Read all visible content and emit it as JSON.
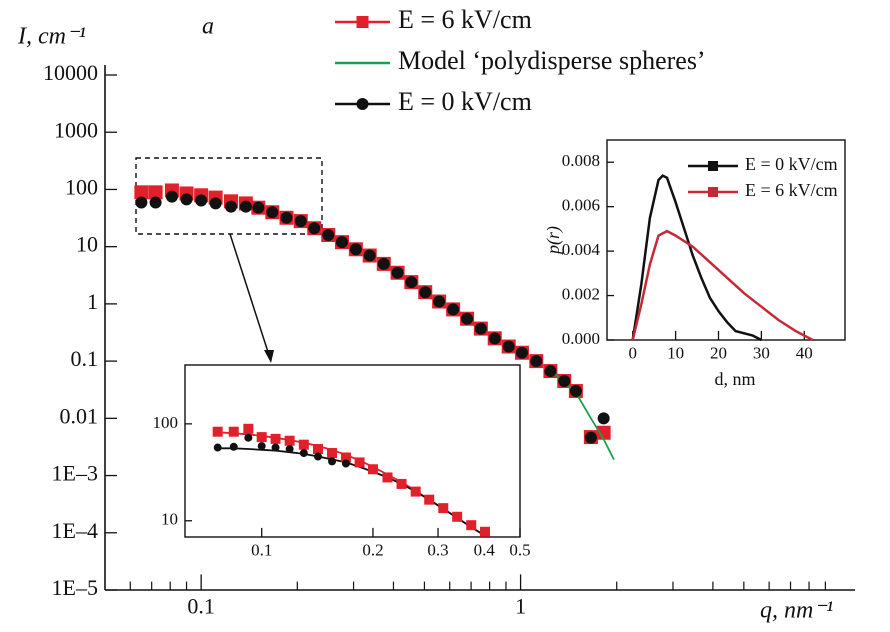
{
  "chart_data": [
    {
      "type": "scatter",
      "ylabel": "I, cm⁻¹",
      "xlabel": "q, nm⁻¹",
      "annotation": "a",
      "xscale": "log",
      "yscale": "log",
      "xlim": [
        0.05,
        10
      ],
      "ylim": [
        1e-05,
        10000
      ],
      "xticks": [
        0.1,
        1
      ],
      "xminorticks": [
        0.06,
        0.07,
        0.08,
        0.09,
        0.2,
        0.3,
        0.4,
        0.5,
        0.6,
        0.7,
        0.8,
        0.9,
        2,
        3,
        4,
        5,
        6,
        7,
        8,
        9
      ],
      "yticks": [
        10000,
        1000,
        100,
        10,
        1,
        0.1,
        0.01,
        {
          "value": 0.001,
          "label": "1E–3"
        },
        {
          "value": 0.0001,
          "label": "1E–4"
        },
        {
          "value": 1e-05,
          "label": "1E–5"
        }
      ],
      "series": [
        {
          "name": "E = 6 kV/cm",
          "color": "#e0202a",
          "marker": "square",
          "x": [
            0.065,
            0.072,
            0.081,
            0.09,
            0.1,
            0.111,
            0.124,
            0.138,
            0.151,
            0.167,
            0.185,
            0.205,
            0.226,
            0.25,
            0.276,
            0.305,
            0.337,
            0.373,
            0.412,
            0.455,
            0.503,
            0.556,
            0.615,
            0.68,
            0.751,
            0.83,
            0.918,
            1.01,
            1.12,
            1.24,
            1.37,
            1.49,
            1.66,
            1.82
          ],
          "values": [
            89,
            89,
            96,
            85,
            79,
            72,
            62,
            57,
            48,
            40,
            32,
            28,
            21,
            16,
            12,
            9,
            7,
            5,
            3.5,
            2.4,
            1.6,
            1.1,
            0.8,
            0.55,
            0.37,
            0.25,
            0.18,
            0.14,
            0.1,
            0.067,
            0.045,
            0.03,
            0.0047,
            0.0056
          ]
        },
        {
          "name": "Model ‘polydisperse spheres’",
          "color": "#1aa04a",
          "line": true,
          "x": [
            1.24,
            1.49,
            1.66,
            1.82,
            1.96
          ],
          "values": [
            0.07,
            0.028,
            0.01,
            0.0043,
            0.0019
          ]
        },
        {
          "name": "E = 0 kV/cm",
          "color": "#111111",
          "marker": "circle",
          "x": [
            0.065,
            0.072,
            0.081,
            0.09,
            0.1,
            0.111,
            0.124,
            0.138,
            0.151,
            0.167,
            0.185,
            0.205,
            0.226,
            0.25,
            0.276,
            0.305,
            0.337,
            0.373,
            0.412,
            0.455,
            0.503,
            0.556,
            0.615,
            0.68,
            0.751,
            0.83,
            0.918,
            1.01,
            1.12,
            1.24,
            1.37,
            1.49,
            1.66,
            1.82
          ],
          "values": [
            59,
            59,
            75,
            67,
            64,
            57,
            50,
            50,
            48,
            40,
            32,
            28,
            21,
            16,
            12,
            9,
            7,
            5,
            3.5,
            2.4,
            1.6,
            1.1,
            0.8,
            0.55,
            0.37,
            0.25,
            0.18,
            0.14,
            0.1,
            0.067,
            0.045,
            0.03,
            0.0046,
            0.01
          ]
        }
      ]
    },
    {
      "type": "scatter",
      "xscale": "log",
      "yscale": "log",
      "xlim": [
        0.062,
        0.5
      ],
      "ylim": [
        6.8,
        405
      ],
      "xticks": [
        0.1,
        0.2,
        0.3,
        0.4,
        0.5
      ],
      "yticks": [
        10,
        100
      ],
      "series": [
        {
          "color": "#e0202a",
          "line": true,
          "x": [
            0.076,
            0.084,
            0.092,
            0.1,
            0.109,
            0.119,
            0.13,
            0.142,
            0.155,
            0.169,
            0.184,
            0.2,
            0.219,
            0.239,
            0.261,
            0.284,
            0.31,
            0.338,
            0.369,
            0.402
          ],
          "values": [
            82,
            80,
            78,
            75,
            72,
            68,
            64,
            59,
            54,
            48,
            42,
            36,
            30,
            25,
            20.5,
            16.5,
            13.3,
            10.7,
            8.6,
            7.0
          ]
        },
        {
          "color": "#111111",
          "line": true,
          "x": [
            0.076,
            0.084,
            0.092,
            0.1,
            0.109,
            0.119,
            0.13,
            0.142,
            0.155,
            0.169,
            0.184,
            0.2,
            0.219,
            0.239,
            0.261,
            0.284,
            0.31,
            0.338,
            0.369,
            0.402
          ],
          "values": [
            56,
            56,
            55,
            54,
            53,
            51,
            49,
            46,
            43,
            40,
            36,
            32,
            28,
            24,
            20,
            16.5,
            13.3,
            10.7,
            8.6,
            7.0
          ]
        },
        {
          "color": "#e0202a",
          "marker": "square",
          "x": [
            0.076,
            0.084,
            0.092,
            0.1,
            0.109,
            0.119,
            0.13,
            0.142,
            0.155,
            0.169,
            0.184,
            0.2,
            0.219,
            0.239,
            0.261,
            0.284,
            0.31,
            0.338,
            0.369,
            0.402
          ],
          "values": [
            83,
            83,
            89,
            73,
            70,
            67,
            61,
            55,
            50,
            45,
            40,
            34,
            28,
            24,
            20,
            16.5,
            13.5,
            11,
            9,
            7.7
          ]
        },
        {
          "color": "#111111",
          "marker": "circle",
          "x": [
            0.076,
            0.084,
            0.092,
            0.1,
            0.109,
            0.119,
            0.13,
            0.142,
            0.155,
            0.169
          ],
          "values": [
            57,
            58,
            72,
            59,
            57,
            55,
            50,
            46,
            41,
            39
          ]
        }
      ]
    },
    {
      "type": "line",
      "ylabel": "p(r)",
      "xlabel": "d, nm",
      "xlim": [
        -6,
        49.5
      ],
      "ylim": [
        0,
        0.009
      ],
      "xticks": [
        0,
        10,
        20,
        30,
        40
      ],
      "yticks": [
        {
          "value": 0,
          "label": "0.000"
        },
        0.002,
        0.004,
        0.006,
        0.008
      ],
      "series": [
        {
          "name": "E = 0 kV/cm",
          "color": "#111111",
          "x": [
            0,
            2,
            4,
            6,
            7,
            8,
            10,
            12,
            14,
            16,
            18,
            20,
            22,
            24,
            26,
            28,
            30
          ],
          "values": [
            0,
            0.0025,
            0.0055,
            0.0072,
            0.0074,
            0.0073,
            0.0062,
            0.005,
            0.0038,
            0.0028,
            0.0019,
            0.0013,
            0.0008,
            0.0004,
            0.0003,
            0.0002,
            0
          ]
        },
        {
          "name": "E = 6 kV/cm",
          "color": "#c42a36",
          "x": [
            0,
            2,
            4,
            6,
            8,
            10,
            14,
            18,
            22,
            26,
            30,
            34,
            38,
            42
          ],
          "values": [
            0,
            0.0016,
            0.0034,
            0.0047,
            0.0049,
            0.0047,
            0.0042,
            0.0035,
            0.0028,
            0.0021,
            0.0015,
            0.0009,
            0.0004,
            0
          ]
        }
      ]
    }
  ]
}
